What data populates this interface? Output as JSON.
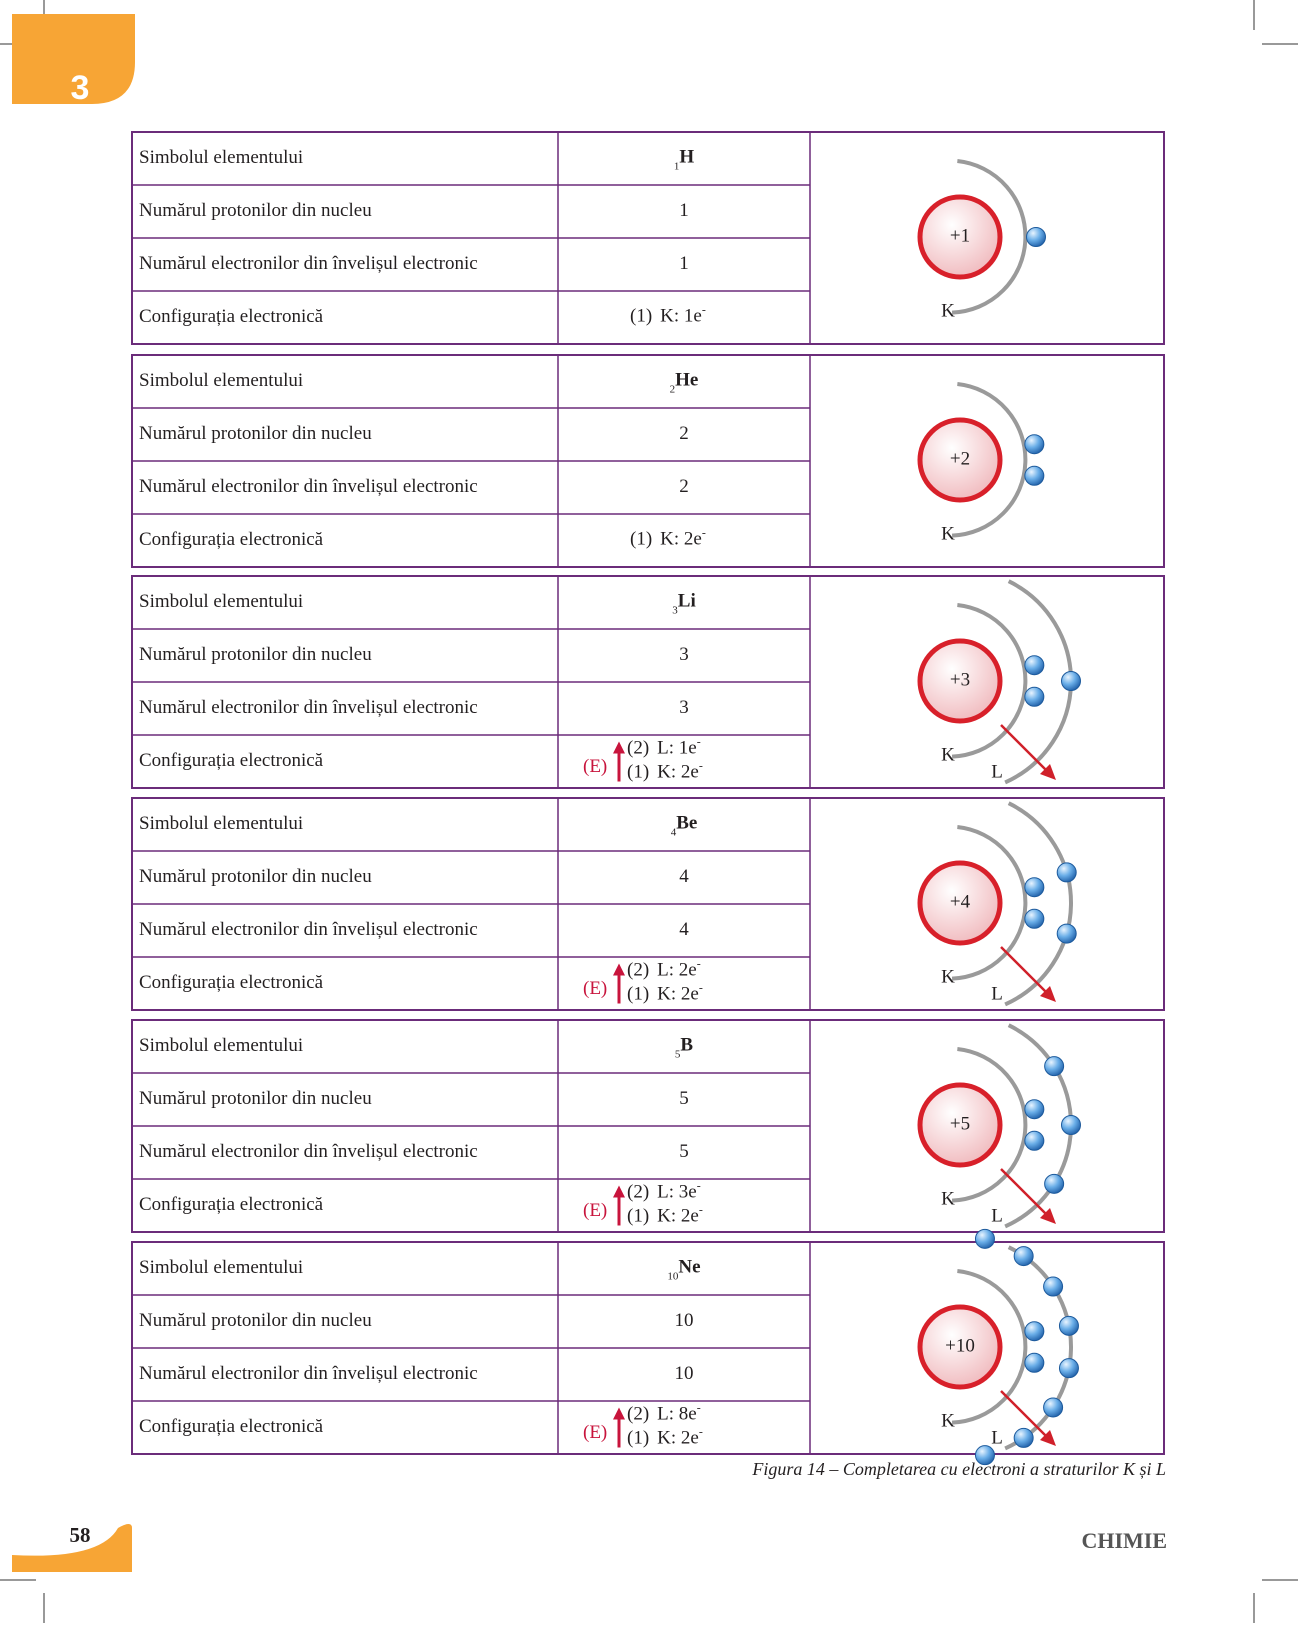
{
  "chapter": "3",
  "blocks": [
    {
      "rows": [
        {
          "label": "Simbolul elementului",
          "z": "1",
          "symbol": "H"
        },
        {
          "label": "Numărul protonilor din nucleu",
          "value": "1"
        },
        {
          "label": "Numărul electronilor din învelișul electronic",
          "value": "1"
        },
        {
          "label": "Configurația electronică"
        }
      ],
      "config": [
        {
          "level": "(1)",
          "text": "K: 1e",
          "sup": "-"
        }
      ],
      "diagram": {
        "charge": "+1",
        "shells": [
          {
            "label": "K",
            "electrons": 1
          }
        ]
      }
    },
    {
      "rows": [
        {
          "label": "Simbolul elementului",
          "z": "2",
          "symbol": "He"
        },
        {
          "label": "Numărul protonilor din nucleu",
          "value": "2"
        },
        {
          "label": "Numărul electronilor din învelișul electronic",
          "value": "2"
        },
        {
          "label": "Configurația electronică"
        }
      ],
      "config": [
        {
          "level": "(1)",
          "text": "K: 2e",
          "sup": "-"
        }
      ],
      "diagram": {
        "charge": "+2",
        "shells": [
          {
            "label": "K",
            "electrons": 2
          }
        ]
      }
    },
    {
      "rows": [
        {
          "label": "Simbolul elementului",
          "z": "3",
          "symbol": "Li"
        },
        {
          "label": "Numărul protonilor din nucleu",
          "value": "3"
        },
        {
          "label": "Numărul electronilor din învelișul electronic",
          "value": "3"
        },
        {
          "label": "Configurația electronică"
        }
      ],
      "energy": "(E)",
      "config": [
        {
          "level": "(2)",
          "text": "L: 1e",
          "sup": "-"
        },
        {
          "level": "(1)",
          "text": "K: 2e",
          "sup": "-"
        }
      ],
      "diagram": {
        "charge": "+3",
        "shells": [
          {
            "label": "K",
            "electrons": 2
          },
          {
            "label": "L",
            "electrons": 1
          }
        ]
      }
    },
    {
      "rows": [
        {
          "label": "Simbolul elementului",
          "z": "4",
          "symbol": "Be"
        },
        {
          "label": "Numărul protonilor din nucleu",
          "value": "4"
        },
        {
          "label": "Numărul electronilor din învelișul electronic",
          "value": "4"
        },
        {
          "label": "Configurația electronică"
        }
      ],
      "energy": "(E)",
      "config": [
        {
          "level": "(2)",
          "text": "L: 2e",
          "sup": "-"
        },
        {
          "level": "(1)",
          "text": "K: 2e",
          "sup": "-"
        }
      ],
      "diagram": {
        "charge": "+4",
        "shells": [
          {
            "label": "K",
            "electrons": 2
          },
          {
            "label": "L",
            "electrons": 2
          }
        ]
      }
    },
    {
      "rows": [
        {
          "label": "Simbolul elementului",
          "z": "5",
          "symbol": "B"
        },
        {
          "label": "Numărul protonilor din nucleu",
          "value": "5"
        },
        {
          "label": "Numărul electronilor din învelișul electronic",
          "value": "5"
        },
        {
          "label": "Configurația electronică"
        }
      ],
      "energy": "(E)",
      "config": [
        {
          "level": "(2)",
          "text": "L: 3e",
          "sup": "-"
        },
        {
          "level": "(1)",
          "text": "K: 2e",
          "sup": "-"
        }
      ],
      "diagram": {
        "charge": "+5",
        "shells": [
          {
            "label": "K",
            "electrons": 2
          },
          {
            "label": "L",
            "electrons": 3
          }
        ]
      }
    },
    {
      "rows": [
        {
          "label": "Simbolul elementului",
          "z": "10",
          "symbol": "Ne"
        },
        {
          "label": "Numărul protonilor din nucleu",
          "value": "10"
        },
        {
          "label": "Numărul electronilor din învelișul electronic",
          "value": "10"
        },
        {
          "label": "Configurația electronică"
        }
      ],
      "energy": "(E)",
      "config": [
        {
          "level": "(2)",
          "text": "L: 8e",
          "sup": "-"
        },
        {
          "level": "(1)",
          "text": "K: 2e",
          "sup": "-"
        }
      ],
      "diagram": {
        "charge": "+10",
        "shells": [
          {
            "label": "K",
            "electrons": 2
          },
          {
            "label": "L",
            "electrons": 8
          }
        ]
      }
    }
  ],
  "caption": "Figura 14 – Completarea cu electroni a straturilor K și L",
  "page_number": "58",
  "subject": "CHIMIE"
}
